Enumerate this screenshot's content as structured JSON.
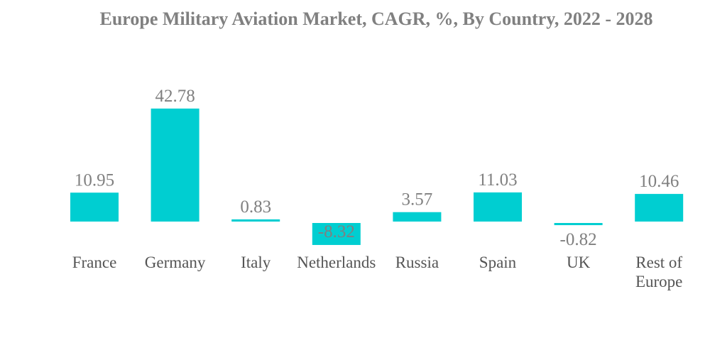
{
  "chart_data": {
    "type": "bar",
    "title": "Europe Military Aviation Market, CAGR, %, By Country, 2022 - 2028",
    "categories": [
      "France",
      "Germany",
      "Italy",
      "Netherlands",
      "Russia",
      "Spain",
      "UK",
      "Rest of Europe"
    ],
    "values": [
      10.95,
      42.78,
      0.83,
      -8.32,
      3.57,
      11.03,
      -0.82,
      10.46
    ],
    "data_labels": [
      "10.95",
      "42.78",
      "0.83",
      "-8.32",
      "3.57",
      "11.03",
      "-0.82",
      "10.46"
    ],
    "xlabel": "",
    "ylabel": "",
    "grid": false,
    "legend": "none",
    "bar_color": "#00CED1",
    "label_color": "#808080"
  }
}
